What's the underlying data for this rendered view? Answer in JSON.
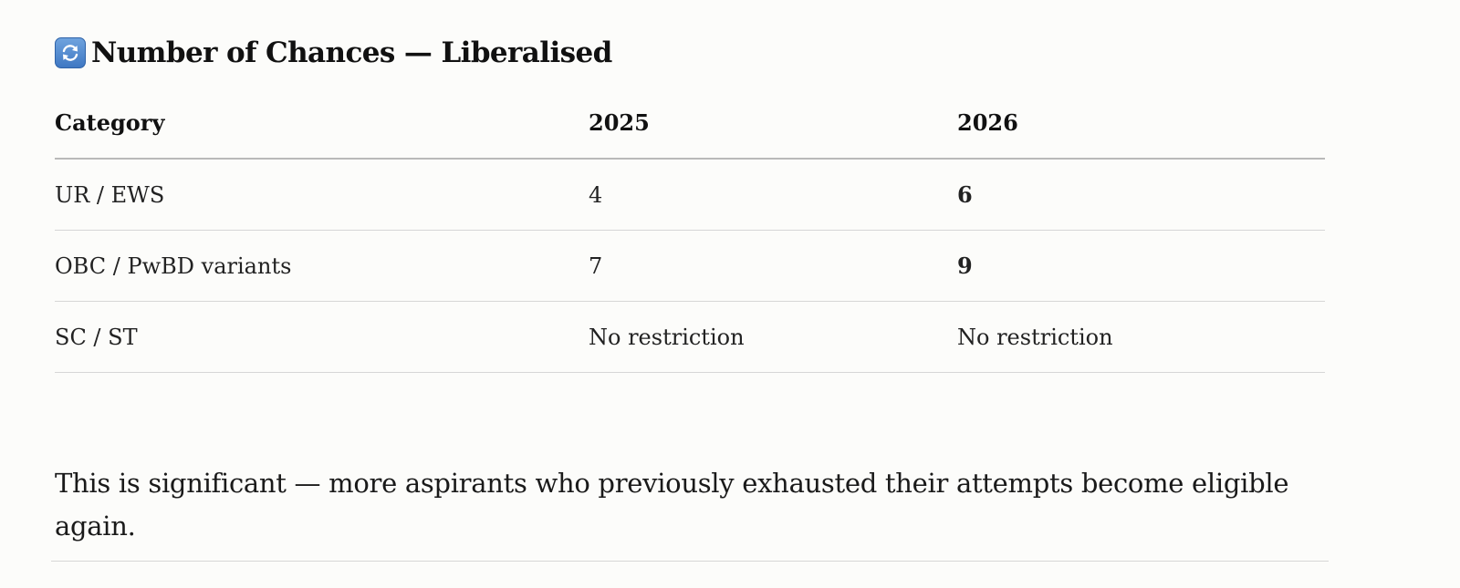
{
  "heading": {
    "icon": "refresh-icon",
    "title": "Number of Chances — Liberalised"
  },
  "table": {
    "headers": [
      "Category",
      "2025",
      "2026"
    ],
    "rows": [
      {
        "category": "UR / EWS",
        "y2025": "4",
        "y2026": "6"
      },
      {
        "category": "OBC / PwBD variants",
        "y2025": "7",
        "y2026": "9"
      },
      {
        "category": "SC / ST",
        "y2025": "No restriction",
        "y2026": "No restriction"
      }
    ]
  },
  "note": "This is significant — more aspirants who previously exhausted their attempts become eligible again."
}
